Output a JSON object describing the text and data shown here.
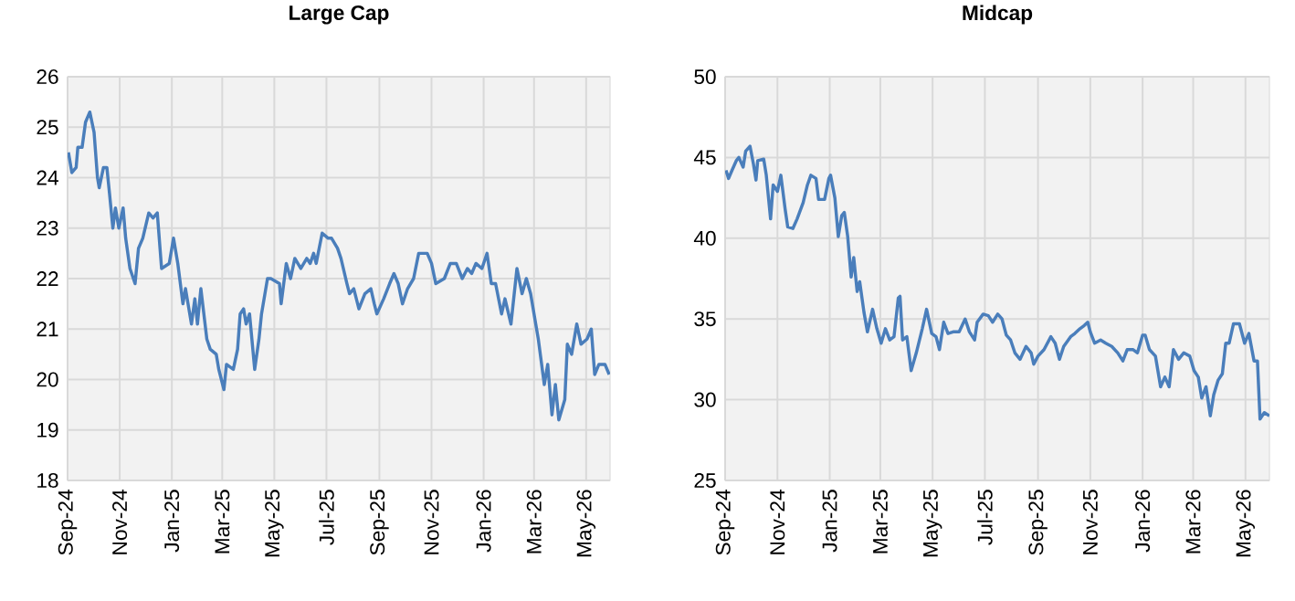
{
  "chart_data": [
    {
      "type": "line",
      "title": "Large Cap",
      "x": [
        "2024-09-02",
        "2024-09-06",
        "2024-09-11",
        "2024-09-13",
        "2024-09-18",
        "2024-09-22",
        "2024-09-27",
        "2024-10-02",
        "2024-10-06",
        "2024-10-08",
        "2024-10-13",
        "2024-10-17",
        "2024-10-20",
        "2024-10-24",
        "2024-10-27",
        "2024-10-31",
        "2024-11-05",
        "2024-11-08",
        "2024-11-13",
        "2024-11-19",
        "2024-11-23",
        "2024-11-28",
        "2024-12-05",
        "2024-12-10",
        "2024-12-15",
        "2024-12-20",
        "2024-12-29",
        "2025-01-03",
        "2025-01-08",
        "2025-01-14",
        "2025-01-17",
        "2025-01-24",
        "2025-01-28",
        "2025-01-31",
        "2025-02-04",
        "2025-02-11",
        "2025-02-15",
        "2025-02-22",
        "2025-02-25",
        "2025-03-03",
        "2025-03-06",
        "2025-03-14",
        "2025-03-19",
        "2025-03-22",
        "2025-03-26",
        "2025-03-29",
        "2025-04-02",
        "2025-04-08",
        "2025-04-13",
        "2025-04-16",
        "2025-04-23",
        "2025-04-27",
        "2025-05-07",
        "2025-05-09",
        "2025-05-15",
        "2025-05-20",
        "2025-05-25",
        "2025-06-01",
        "2025-06-08",
        "2025-06-12",
        "2025-06-16",
        "2025-06-19",
        "2025-06-26",
        "2025-07-03",
        "2025-07-07",
        "2025-07-14",
        "2025-07-18",
        "2025-07-25",
        "2025-07-28",
        "2025-08-02",
        "2025-08-08",
        "2025-08-15",
        "2025-08-22",
        "2025-08-26",
        "2025-08-29",
        "2025-09-06",
        "2025-09-13",
        "2025-09-18",
        "2025-09-23",
        "2025-09-28",
        "2025-10-04",
        "2025-10-11",
        "2025-10-17",
        "2025-10-23",
        "2025-10-27",
        "2025-11-01",
        "2025-11-06",
        "2025-11-16",
        "2025-11-23",
        "2025-11-30",
        "2025-12-07",
        "2025-12-13",
        "2025-12-18",
        "2025-12-23",
        "2025-12-30",
        "2026-01-05",
        "2026-01-10",
        "2026-01-15",
        "2026-01-22",
        "2026-01-26",
        "2026-02-02",
        "2026-02-09",
        "2026-02-15",
        "2026-02-20",
        "2026-02-25",
        "2026-03-03",
        "2026-03-06",
        "2026-03-13",
        "2026-03-17",
        "2026-03-22",
        "2026-03-26",
        "2026-03-30",
        "2026-04-06",
        "2026-04-09",
        "2026-04-14",
        "2026-04-20",
        "2026-04-25",
        "2026-05-02",
        "2026-05-07",
        "2026-05-11",
        "2026-05-16",
        "2026-05-23",
        "2026-05-28"
      ],
      "series": [
        {
          "color": "#4a7ebb",
          "values": [
            24.5,
            24.1,
            24.2,
            24.6,
            24.6,
            25.1,
            25.3,
            24.9,
            24.0,
            23.8,
            24.2,
            24.2,
            23.7,
            23.0,
            23.4,
            23.0,
            23.4,
            22.8,
            22.2,
            21.9,
            22.6,
            22.8,
            23.3,
            23.2,
            23.3,
            22.2,
            22.3,
            22.8,
            22.3,
            21.5,
            21.8,
            21.1,
            21.6,
            21.1,
            21.8,
            20.8,
            20.6,
            20.5,
            20.2,
            19.8,
            20.3,
            20.2,
            20.6,
            21.3,
            21.4,
            21.1,
            21.3,
            20.2,
            20.8,
            21.3,
            22.0,
            22.0,
            21.9,
            21.5,
            22.3,
            22.0,
            22.4,
            22.2,
            22.4,
            22.3,
            22.5,
            22.3,
            22.9,
            22.8,
            22.8,
            22.6,
            22.4,
            21.9,
            21.7,
            21.8,
            21.4,
            21.7,
            21.8,
            21.5,
            21.3,
            21.6,
            21.9,
            22.1,
            21.9,
            21.5,
            21.8,
            22.0,
            22.5,
            22.5,
            22.5,
            22.3,
            21.9,
            22.0,
            22.3,
            22.3,
            22.0,
            22.2,
            22.1,
            22.3,
            22.2,
            22.5,
            21.9,
            21.9,
            21.3,
            21.6,
            21.1,
            22.2,
            21.7,
            22.0,
            21.7,
            21.1,
            20.8,
            19.9,
            20.3,
            19.3,
            19.9,
            19.2,
            19.6,
            20.7,
            20.5,
            21.1,
            20.7,
            20.8,
            21.0,
            20.1,
            20.3,
            20.3,
            20.1
          ]
        }
      ],
      "xlim": [
        "2024-09-01",
        "2026-05-29"
      ],
      "xticks": [
        {
          "value": "2024-09-01",
          "label": "Sep-24"
        },
        {
          "value": "2024-11-01",
          "label": "Nov-24"
        },
        {
          "value": "2025-01-01",
          "label": "Jan-25"
        },
        {
          "value": "2025-03-01",
          "label": "Mar-25"
        },
        {
          "value": "2025-05-01",
          "label": "May-25"
        },
        {
          "value": "2025-07-01",
          "label": "Jul-25"
        },
        {
          "value": "2025-09-01",
          "label": "Sep-25"
        },
        {
          "value": "2025-11-01",
          "label": "Nov-25"
        },
        {
          "value": "2026-01-01",
          "label": "Jan-26"
        },
        {
          "value": "2026-03-01",
          "label": "Mar-26"
        },
        {
          "value": "2026-05-01",
          "label": "May-26"
        }
      ],
      "ylim": [
        18,
        26
      ],
      "yticks": [
        18,
        19,
        20,
        21,
        22,
        23,
        24,
        25,
        26
      ],
      "grid": true
    },
    {
      "type": "line",
      "title": "Midcap",
      "x": [
        "2024-09-02",
        "2024-09-05",
        "2024-09-09",
        "2024-09-14",
        "2024-09-17",
        "2024-09-22",
        "2024-09-25",
        "2024-09-30",
        "2024-10-04",
        "2024-10-07",
        "2024-10-09",
        "2024-10-16",
        "2024-10-19",
        "2024-10-24",
        "2024-10-27",
        "2024-11-01",
        "2024-11-05",
        "2024-11-10",
        "2024-11-13",
        "2024-11-19",
        "2024-11-24",
        "2024-12-01",
        "2024-12-06",
        "2024-12-10",
        "2024-12-16",
        "2024-12-19",
        "2024-12-26",
        "2024-12-31",
        "2025-01-02",
        "2025-01-07",
        "2025-01-11",
        "2025-01-15",
        "2025-01-18",
        "2025-01-22",
        "2025-01-26",
        "2025-01-29",
        "2025-02-02",
        "2025-02-05",
        "2025-02-10",
        "2025-02-14",
        "2025-02-20",
        "2025-02-25",
        "2025-03-02",
        "2025-03-07",
        "2025-03-12",
        "2025-03-17",
        "2025-03-22",
        "2025-03-24",
        "2025-03-27",
        "2025-04-01",
        "2025-04-06",
        "2025-04-12",
        "2025-04-19",
        "2025-04-24",
        "2025-04-30",
        "2025-05-05",
        "2025-05-09",
        "2025-05-14",
        "2025-05-19",
        "2025-05-25",
        "2025-06-01",
        "2025-06-08",
        "2025-06-13",
        "2025-06-19",
        "2025-06-22",
        "2025-06-29",
        "2025-07-05",
        "2025-07-10",
        "2025-07-16",
        "2025-07-21",
        "2025-07-26",
        "2025-07-31",
        "2025-08-05",
        "2025-08-11",
        "2025-08-18",
        "2025-08-24",
        "2025-08-27",
        "2025-09-01",
        "2025-09-08",
        "2025-09-16",
        "2025-09-21",
        "2025-09-26",
        "2025-10-01",
        "2025-10-09",
        "2025-10-14",
        "2025-10-20",
        "2025-10-25",
        "2025-10-29",
        "2025-11-01",
        "2025-11-06",
        "2025-11-13",
        "2025-11-19",
        "2025-11-26",
        "2025-12-03",
        "2025-12-09",
        "2025-12-14",
        "2025-12-21",
        "2025-12-26",
        "2026-01-01",
        "2026-01-04",
        "2026-01-09",
        "2026-01-16",
        "2026-01-22",
        "2026-01-27",
        "2026-02-01",
        "2026-02-06",
        "2026-02-12",
        "2026-02-18",
        "2026-02-25",
        "2026-03-02",
        "2026-03-07",
        "2026-03-11",
        "2026-03-16",
        "2026-03-21",
        "2026-03-25",
        "2026-03-30",
        "2026-04-04",
        "2026-04-08",
        "2026-04-12",
        "2026-04-17",
        "2026-04-24",
        "2026-04-30",
        "2026-05-05",
        "2026-05-11",
        "2026-05-15",
        "2026-05-18",
        "2026-05-23",
        "2026-05-29"
      ],
      "series": [
        {
          "color": "#4a7ebb",
          "values": [
            44.2,
            43.7,
            44.2,
            44.8,
            45.0,
            44.4,
            45.4,
            45.7,
            44.6,
            43.6,
            44.8,
            44.9,
            43.9,
            41.2,
            43.3,
            42.9,
            43.9,
            41.8,
            40.7,
            40.6,
            41.2,
            42.2,
            43.3,
            43.9,
            43.7,
            42.4,
            42.4,
            43.7,
            43.9,
            42.5,
            40.1,
            41.4,
            41.6,
            40.1,
            37.6,
            38.8,
            36.7,
            37.3,
            35.4,
            34.2,
            35.6,
            34.4,
            33.5,
            34.4,
            33.7,
            33.9,
            36.3,
            36.4,
            33.7,
            33.9,
            31.8,
            32.9,
            34.4,
            35.6,
            34.1,
            33.9,
            33.1,
            34.8,
            34.1,
            34.2,
            34.2,
            35.0,
            34.2,
            33.7,
            34.8,
            35.3,
            35.2,
            34.8,
            35.3,
            35.0,
            34.0,
            33.7,
            32.9,
            32.5,
            33.3,
            32.9,
            32.2,
            32.7,
            33.1,
            33.9,
            33.5,
            32.5,
            33.3,
            33.9,
            34.1,
            34.4,
            34.6,
            34.8,
            34.2,
            33.5,
            33.7,
            33.5,
            33.3,
            32.9,
            32.4,
            33.1,
            33.1,
            32.9,
            34.0,
            34.0,
            33.1,
            32.7,
            30.8,
            31.4,
            30.8,
            33.1,
            32.5,
            32.9,
            32.7,
            31.8,
            31.4,
            30.1,
            30.8,
            29.0,
            30.3,
            31.2,
            31.6,
            33.5,
            33.5,
            34.7,
            34.7,
            33.5,
            34.1,
            32.4,
            32.4,
            28.8,
            29.2,
            29.0
          ]
        }
      ],
      "xlim": [
        "2024-09-01",
        "2026-05-29"
      ],
      "xticks": [
        {
          "value": "2024-09-01",
          "label": "Sep-24"
        },
        {
          "value": "2024-11-01",
          "label": "Nov-24"
        },
        {
          "value": "2025-01-01",
          "label": "Jan-25"
        },
        {
          "value": "2025-03-01",
          "label": "Mar-25"
        },
        {
          "value": "2025-05-01",
          "label": "May-25"
        },
        {
          "value": "2025-07-01",
          "label": "Jul-25"
        },
        {
          "value": "2025-09-01",
          "label": "Sep-25"
        },
        {
          "value": "2025-11-01",
          "label": "Nov-25"
        },
        {
          "value": "2026-01-01",
          "label": "Jan-26"
        },
        {
          "value": "2026-03-01",
          "label": "Mar-26"
        },
        {
          "value": "2026-05-01",
          "label": "May-26"
        }
      ],
      "ylim": [
        25,
        50
      ],
      "yticks": [
        25,
        30,
        35,
        40,
        45,
        50
      ],
      "grid": true
    }
  ]
}
